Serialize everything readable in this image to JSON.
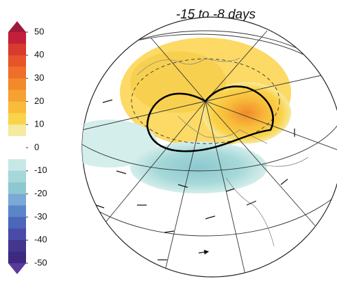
{
  "title": "-15 to -8 days",
  "colorbar": {
    "ticks": [
      50,
      40,
      30,
      20,
      10,
      0,
      -10,
      -20,
      -30,
      -40,
      -50
    ],
    "colors": [
      "#c21f3a",
      "#d83a2f",
      "#e8542a",
      "#ee6f2a",
      "#f28a2c",
      "#f5a230",
      "#f8bb3a",
      "#fbd34a",
      "#f5eaa0",
      "#ffffff",
      "#ffffff",
      "#c6e8e6",
      "#a5d8d8",
      "#8dc8d0",
      "#7aa8d8",
      "#5a86c8",
      "#4c66b8",
      "#4a4aa8",
      "#44358f",
      "#3d2a80"
    ],
    "over_color": "#9e1a3a",
    "under_color": "#5a3a99"
  }
}
